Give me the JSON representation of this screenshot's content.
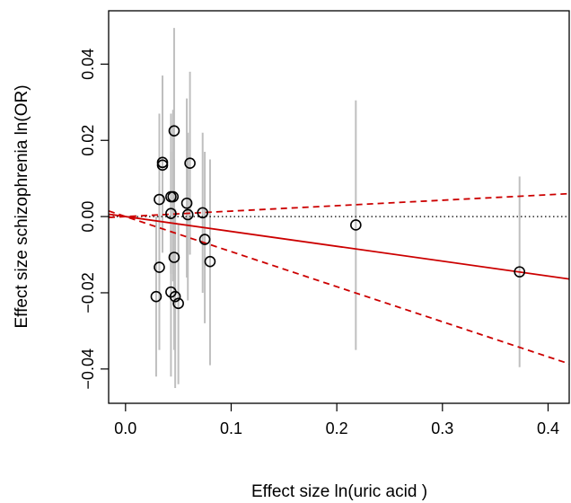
{
  "chart_data": {
    "type": "scatter",
    "xlabel": "Effect size ln(uric acid )",
    "ylabel": "Effect size schizophrenia ln(OR)",
    "xlim": [
      -0.016,
      0.42
    ],
    "ylim": [
      -0.049,
      0.054
    ],
    "x_ticks": [
      0.0,
      0.1,
      0.2,
      0.3,
      0.4
    ],
    "x_tick_labels": [
      "0.0",
      "0.1",
      "0.2",
      "0.3",
      "0.4"
    ],
    "y_ticks": [
      -0.04,
      -0.02,
      0.0,
      0.02,
      0.04
    ],
    "y_tick_labels": [
      "−0.04",
      "−0.02",
      "0.00",
      "0.02",
      "0.04"
    ],
    "grid": false,
    "colors": {
      "points": "#000000",
      "error_bars": "#bfbfbf",
      "fit_line": "#cc0000",
      "reference_line": "#000000"
    },
    "points": [
      {
        "x": 0.046,
        "y": 0.0225,
        "ylo": -0.0045,
        "yhi": 0.0495
      },
      {
        "x": 0.035,
        "y": 0.0142,
        "ylo": -0.0085,
        "yhi": 0.037
      },
      {
        "x": 0.035,
        "y": 0.0135,
        "ylo": -0.0095,
        "yhi": 0.036
      },
      {
        "x": 0.061,
        "y": 0.014,
        "ylo": -0.01,
        "yhi": 0.038
      },
      {
        "x": 0.043,
        "y": 0.0052,
        "ylo": -0.015,
        "yhi": 0.027
      },
      {
        "x": 0.045,
        "y": 0.0052,
        "ylo": -0.017,
        "yhi": 0.028
      },
      {
        "x": 0.032,
        "y": 0.0045,
        "ylo": -0.018,
        "yhi": 0.027
      },
      {
        "x": 0.058,
        "y": 0.0035,
        "ylo": -0.016,
        "yhi": 0.031
      },
      {
        "x": 0.073,
        "y": 0.001,
        "ylo": -0.02,
        "yhi": 0.022
      },
      {
        "x": 0.043,
        "y": 0.0008,
        "ylo": -0.015,
        "yhi": 0.017
      },
      {
        "x": 0.059,
        "y": 0.0005,
        "ylo": -0.022,
        "yhi": 0.022
      },
      {
        "x": 0.075,
        "y": -0.006,
        "ylo": -0.028,
        "yhi": 0.017
      },
      {
        "x": 0.046,
        "y": -0.0107,
        "ylo": -0.035,
        "yhi": 0.015
      },
      {
        "x": 0.08,
        "y": -0.0118,
        "ylo": -0.039,
        "yhi": 0.015
      },
      {
        "x": 0.032,
        "y": -0.0133,
        "ylo": -0.035,
        "yhi": 0.008
      },
      {
        "x": 0.043,
        "y": -0.0198,
        "ylo": -0.042,
        "yhi": 0.003
      },
      {
        "x": 0.047,
        "y": -0.021,
        "ylo": -0.045,
        "yhi": 0.002
      },
      {
        "x": 0.029,
        "y": -0.021,
        "ylo": -0.042,
        "yhi": 0.0
      },
      {
        "x": 0.05,
        "y": -0.0228,
        "ylo": -0.044,
        "yhi": -0.002
      },
      {
        "x": 0.218,
        "y": -0.0022,
        "ylo": -0.035,
        "yhi": 0.0305
      },
      {
        "x": 0.373,
        "y": -0.0145,
        "ylo": -0.0395,
        "yhi": 0.0105
      }
    ],
    "fit": {
      "intercept": 0.0,
      "slope": -0.039,
      "ci_upper_slope": 0.0143,
      "ci_lower_slope": -0.092
    },
    "reference_line_y": 0.0
  }
}
